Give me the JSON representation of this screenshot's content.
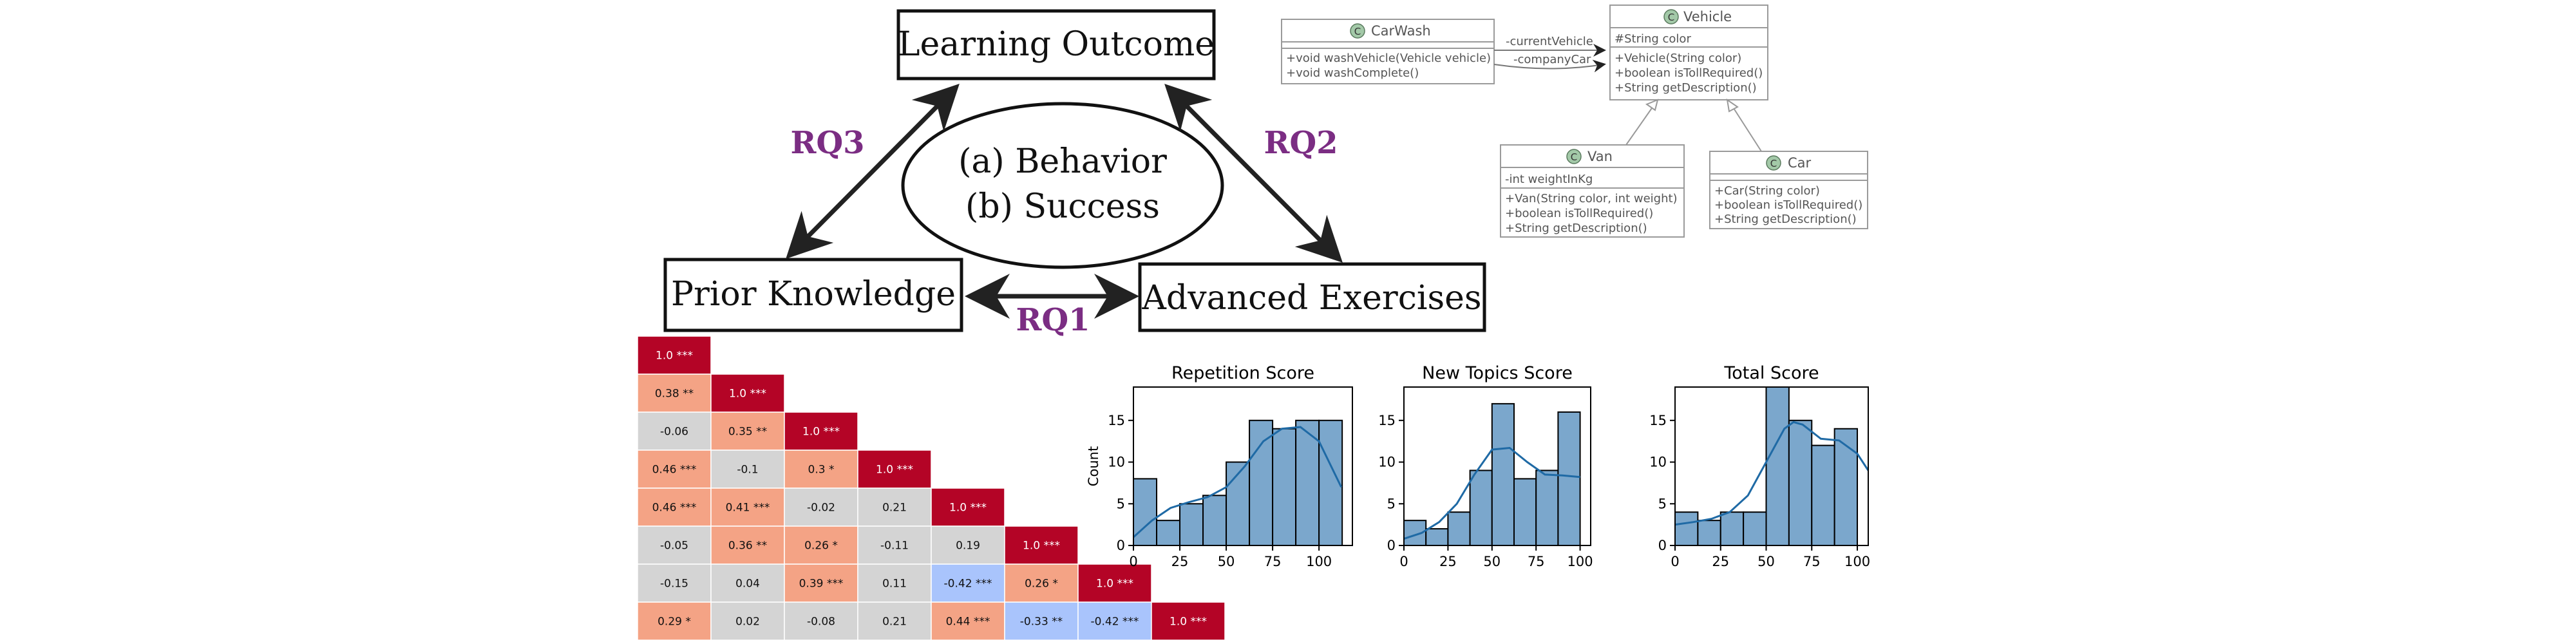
{
  "diagram": {
    "learning_outcome": "Learning Outcome",
    "prior_knowledge": "Prior Knowledge",
    "advanced_exercises": "Advanced Exercises",
    "center_line1": "(a) Behavior",
    "center_line2": "(b) Success",
    "rq1": "RQ1",
    "rq2": "RQ2",
    "rq3": "RQ3",
    "rq_color": "#7b2d83"
  },
  "uml": {
    "classes": [
      {
        "name": "CarWash",
        "fields": [],
        "methods": [
          "+void washVehicle(Vehicle vehicle)",
          "+void washComplete()"
        ]
      },
      {
        "name": "Vehicle",
        "fields": [
          "#String color"
        ],
        "methods": [
          "+Vehicle(String color)",
          "+boolean isTollRequired()",
          "+String getDescription()"
        ]
      },
      {
        "name": "Van",
        "fields": [
          "-int weightInKg"
        ],
        "methods": [
          "+Van(String color, int weight)",
          "+boolean isTollRequired()",
          "+String getDescription()"
        ]
      },
      {
        "name": "Car",
        "fields": [],
        "methods": [
          "+Car(String color)",
          "+boolean isTollRequired()",
          "+String getDescription()"
        ]
      }
    ],
    "associations": [
      "-currentVehicle",
      "-companyCar"
    ],
    "icon_letter": "C",
    "icon_color": "#a3c9a8"
  },
  "heatmap": {
    "rows": [
      [
        {
          "t": "1.0 ***",
          "v": 1.0
        }
      ],
      [
        {
          "t": "0.38 **",
          "v": 0.38
        },
        {
          "t": "1.0 ***",
          "v": 1.0
        }
      ],
      [
        {
          "t": "-0.06",
          "v": -0.06
        },
        {
          "t": "0.35 **",
          "v": 0.35
        },
        {
          "t": "1.0 ***",
          "v": 1.0
        }
      ],
      [
        {
          "t": "0.46 ***",
          "v": 0.46
        },
        {
          "t": "-0.1",
          "v": -0.1
        },
        {
          "t": "0.3 *",
          "v": 0.3
        },
        {
          "t": "1.0 ***",
          "v": 1.0
        }
      ],
      [
        {
          "t": "0.46 ***",
          "v": 0.46
        },
        {
          "t": "0.41 ***",
          "v": 0.41
        },
        {
          "t": "-0.02",
          "v": -0.02
        },
        {
          "t": "0.21",
          "v": 0.21
        },
        {
          "t": "1.0 ***",
          "v": 1.0
        }
      ],
      [
        {
          "t": "-0.05",
          "v": -0.05
        },
        {
          "t": "0.36 **",
          "v": 0.36
        },
        {
          "t": "0.26 *",
          "v": 0.26
        },
        {
          "t": "-0.11",
          "v": -0.11
        },
        {
          "t": "0.19",
          "v": 0.19
        },
        {
          "t": "1.0 ***",
          "v": 1.0
        }
      ],
      [
        {
          "t": "-0.15",
          "v": -0.15
        },
        {
          "t": "0.04",
          "v": 0.04
        },
        {
          "t": "0.39 ***",
          "v": 0.39
        },
        {
          "t": "0.11",
          "v": 0.11
        },
        {
          "t": "-0.42 ***",
          "v": -0.42
        },
        {
          "t": "0.26 *",
          "v": 0.26
        },
        {
          "t": "1.0 ***",
          "v": 1.0
        }
      ],
      [
        {
          "t": "0.29 *",
          "v": 0.29
        },
        {
          "t": "0.02",
          "v": 0.02
        },
        {
          "t": "-0.08",
          "v": -0.08
        },
        {
          "t": "0.21",
          "v": 0.21
        },
        {
          "t": "0.44 ***",
          "v": 0.44
        },
        {
          "t": "-0.33 **",
          "v": -0.33
        },
        {
          "t": "-0.42 ***",
          "v": -0.42
        },
        {
          "t": "1.0 ***",
          "v": 1.0
        }
      ]
    ],
    "colors": {
      "strong": "#b40426",
      "pos": "#f4a385",
      "neutral": "#d4d4d4",
      "neg": "#a9c4fc"
    }
  },
  "chart_data": [
    {
      "type": "bar",
      "title": "Repetition Score",
      "ylabel": "Count",
      "xticks": [
        0,
        25,
        50,
        75,
        100
      ],
      "yticks": [
        0,
        5,
        10,
        15
      ],
      "xlim": [
        0,
        118
      ],
      "ylim": [
        0,
        19
      ],
      "bin_edges": [
        0,
        12.5,
        25,
        37.5,
        50,
        62.5,
        75,
        87.5,
        100,
        112.5
      ],
      "values": [
        8,
        3,
        5,
        6,
        10,
        15,
        14,
        15,
        15
      ],
      "kde": [
        [
          0,
          1
        ],
        [
          10,
          3
        ],
        [
          20,
          4.5
        ],
        [
          30,
          5.2
        ],
        [
          40,
          5.8
        ],
        [
          50,
          7
        ],
        [
          60,
          9.5
        ],
        [
          70,
          12.5
        ],
        [
          80,
          14
        ],
        [
          90,
          14.2
        ],
        [
          100,
          12.5
        ],
        [
          112,
          7
        ]
      ],
      "bar_color": "#7ba7cc",
      "line_color": "#1f6aa5"
    },
    {
      "type": "bar",
      "title": "New Topics Score",
      "xticks": [
        0,
        25,
        50,
        75,
        100
      ],
      "yticks": [
        0,
        5,
        10,
        15
      ],
      "xlim": [
        0,
        106
      ],
      "ylim": [
        0,
        19
      ],
      "bin_edges": [
        0,
        12.5,
        25,
        37.5,
        50,
        62.5,
        75,
        87.5,
        100
      ],
      "values": [
        3,
        2,
        4,
        9,
        17,
        8,
        9,
        16
      ],
      "kde": [
        [
          0,
          0.8
        ],
        [
          10,
          1.5
        ],
        [
          20,
          2.8
        ],
        [
          30,
          5
        ],
        [
          40,
          8.5
        ],
        [
          50,
          11.5
        ],
        [
          60,
          11.7
        ],
        [
          70,
          10
        ],
        [
          80,
          8.5
        ],
        [
          90,
          8.4
        ],
        [
          100,
          8.2
        ]
      ],
      "bar_color": "#7ba7cc",
      "line_color": "#1f6aa5"
    },
    {
      "type": "bar",
      "title": "Total Score",
      "xticks": [
        0,
        25,
        50,
        75,
        100
      ],
      "yticks": [
        0,
        5,
        10,
        15
      ],
      "xlim": [
        0,
        106
      ],
      "ylim": [
        0,
        19
      ],
      "bin_edges": [
        0,
        12.5,
        25,
        37.5,
        50,
        62.5,
        75,
        87.5,
        100
      ],
      "values": [
        4,
        3,
        4,
        4,
        19,
        15,
        12,
        14
      ],
      "kde": [
        [
          0,
          2.5
        ],
        [
          10,
          2.8
        ],
        [
          20,
          3.2
        ],
        [
          30,
          4
        ],
        [
          40,
          6
        ],
        [
          50,
          10
        ],
        [
          60,
          14
        ],
        [
          65,
          14.8
        ],
        [
          70,
          14.5
        ],
        [
          80,
          12.8
        ],
        [
          90,
          12.6
        ],
        [
          100,
          11
        ],
        [
          106,
          9
        ]
      ],
      "bar_color": "#7ba7cc",
      "line_color": "#1f6aa5"
    }
  ]
}
